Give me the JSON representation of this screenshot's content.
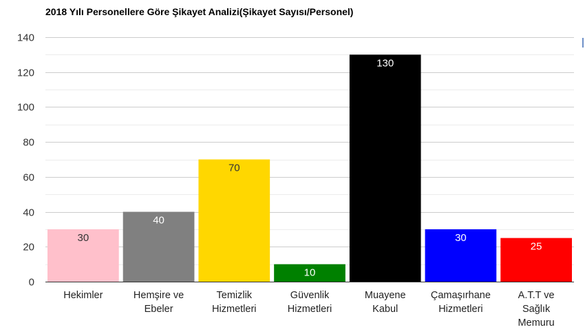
{
  "chart_data": {
    "type": "bar",
    "title": "2018 Yılı Personellere Göre Şikayet Analizi(Şikayet Sayısı/Personel)",
    "categories": [
      [
        "Hekimler"
      ],
      [
        "Hemşire ve",
        "Ebeler"
      ],
      [
        "Temizlik",
        "Hizmetleri"
      ],
      [
        "Güvenlik",
        "Hizmetleri"
      ],
      [
        "Muayene",
        "Kabul"
      ],
      [
        "Çamaşırhane",
        "Hizmetleri"
      ],
      [
        "A.T.T ve",
        "Sağlık",
        "Memuru"
      ]
    ],
    "values": [
      30,
      40,
      70,
      10,
      130,
      30,
      25
    ],
    "colors": [
      "#ffc0cb",
      "#808080",
      "#ffd700",
      "#008000",
      "#000000",
      "#0000ff",
      "#ff0000"
    ],
    "label_colors": [
      "#333333",
      "#ffffff",
      "#333333",
      "#ffffff",
      "#ffffff",
      "#ffffff",
      "#ffffff"
    ],
    "ylim": [
      0,
      140
    ],
    "yticks": [
      0,
      20,
      40,
      60,
      80,
      100,
      120,
      140
    ],
    "grid": true,
    "xlabel": "",
    "ylabel": ""
  }
}
